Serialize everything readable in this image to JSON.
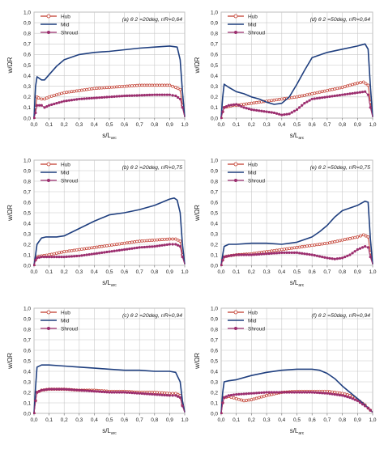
{
  "figure": {
    "background": "#ffffff"
  },
  "chart_data": [
    {
      "type": "line",
      "panel_label": "(a) θ 2 =20deg, r/R=0,64",
      "xlabel": "s/L_arc",
      "ylabel": "w/ΩR",
      "xlim": [
        0,
        1
      ],
      "ylim": [
        0,
        1
      ],
      "xticks": [
        "0,0",
        "0,1",
        "0,2",
        "0,3",
        "0,4",
        "0,5",
        "0,6",
        "0,7",
        "0,8",
        "0,9",
        "1,0"
      ],
      "yticks": [
        "0,0",
        "0,1",
        "0,2",
        "0,3",
        "0,4",
        "0,5",
        "0,6",
        "0,7",
        "0,8",
        "0,9",
        "1,0"
      ],
      "grid": true,
      "legend_position": "top-left",
      "series": [
        {
          "name": "Hub",
          "color": "#c0392b",
          "marker": "open-circle",
          "x": [
            0,
            0.01,
            0.02,
            0.03,
            0.05,
            0.07,
            0.1,
            0.15,
            0.2,
            0.3,
            0.4,
            0.5,
            0.6,
            0.7,
            0.8,
            0.9,
            0.94,
            0.97,
            0.985,
            1.0
          ],
          "y": [
            0.0,
            0.1,
            0.2,
            0.19,
            0.18,
            0.18,
            0.2,
            0.22,
            0.24,
            0.26,
            0.28,
            0.29,
            0.3,
            0.31,
            0.31,
            0.31,
            0.29,
            0.27,
            0.12,
            0.01
          ]
        },
        {
          "name": "Mid",
          "color": "#1f3f7f",
          "marker": "none",
          "x": [
            0,
            0.01,
            0.02,
            0.05,
            0.07,
            0.1,
            0.15,
            0.2,
            0.3,
            0.4,
            0.5,
            0.6,
            0.7,
            0.8,
            0.9,
            0.95,
            0.97,
            0.985,
            1.0
          ],
          "y": [
            0.0,
            0.3,
            0.39,
            0.36,
            0.36,
            0.41,
            0.49,
            0.55,
            0.6,
            0.62,
            0.63,
            0.645,
            0.66,
            0.67,
            0.68,
            0.67,
            0.55,
            0.25,
            0.01
          ]
        },
        {
          "name": "Shroud",
          "color": "#9b2d6e",
          "marker": "filled-circle",
          "x": [
            0,
            0.01,
            0.02,
            0.05,
            0.07,
            0.1,
            0.15,
            0.2,
            0.3,
            0.4,
            0.5,
            0.6,
            0.7,
            0.8,
            0.9,
            0.94,
            0.97,
            0.985,
            1.0
          ],
          "y": [
            0.0,
            0.05,
            0.12,
            0.12,
            0.1,
            0.12,
            0.14,
            0.16,
            0.18,
            0.19,
            0.2,
            0.21,
            0.215,
            0.22,
            0.22,
            0.21,
            0.18,
            0.1,
            0.01
          ]
        }
      ]
    },
    {
      "type": "line",
      "panel_label": "(d) θ 2 =50deg, r/R=0,64",
      "xlabel": "s/L_arc",
      "ylabel": "w/ΩR",
      "xlim": [
        0,
        1
      ],
      "ylim": [
        0,
        1
      ],
      "xticks": [
        "0,0",
        "0,1",
        "0,2",
        "0,3",
        "0,4",
        "0,5",
        "0,6",
        "0,7",
        "0,8",
        "0,9",
        "1,0"
      ],
      "yticks": [
        "0,0",
        "0,1",
        "0,2",
        "0,3",
        "0,4",
        "0,5",
        "0,6",
        "0,7",
        "0,8",
        "0,9",
        "1,0"
      ],
      "grid": true,
      "legend_position": "top-left",
      "series": [
        {
          "name": "Hub",
          "color": "#c0392b",
          "marker": "open-circle",
          "x": [
            0,
            0.01,
            0.02,
            0.05,
            0.08,
            0.1,
            0.15,
            0.2,
            0.3,
            0.4,
            0.5,
            0.6,
            0.7,
            0.8,
            0.9,
            0.94,
            0.97,
            0.985,
            1.0
          ],
          "y": [
            0.0,
            0.06,
            0.1,
            0.11,
            0.12,
            0.12,
            0.13,
            0.14,
            0.16,
            0.18,
            0.2,
            0.23,
            0.26,
            0.29,
            0.33,
            0.34,
            0.31,
            0.15,
            0.01
          ]
        },
        {
          "name": "Mid",
          "color": "#1f3f7f",
          "marker": "none",
          "x": [
            0,
            0.01,
            0.02,
            0.05,
            0.1,
            0.15,
            0.2,
            0.25,
            0.3,
            0.35,
            0.4,
            0.45,
            0.5,
            0.55,
            0.6,
            0.7,
            0.8,
            0.9,
            0.95,
            0.97,
            0.985,
            1.0
          ],
          "y": [
            0.0,
            0.2,
            0.32,
            0.29,
            0.25,
            0.23,
            0.2,
            0.18,
            0.15,
            0.13,
            0.14,
            0.2,
            0.32,
            0.45,
            0.57,
            0.62,
            0.65,
            0.68,
            0.7,
            0.65,
            0.3,
            0.01
          ]
        },
        {
          "name": "Shroud",
          "color": "#9b2d6e",
          "marker": "filled-circle",
          "x": [
            0,
            0.01,
            0.02,
            0.05,
            0.1,
            0.15,
            0.2,
            0.25,
            0.3,
            0.35,
            0.4,
            0.45,
            0.5,
            0.55,
            0.6,
            0.7,
            0.8,
            0.9,
            0.95,
            0.97,
            0.985,
            1.0
          ],
          "y": [
            0.0,
            0.06,
            0.1,
            0.12,
            0.13,
            0.1,
            0.08,
            0.07,
            0.06,
            0.05,
            0.03,
            0.04,
            0.08,
            0.14,
            0.18,
            0.2,
            0.22,
            0.24,
            0.25,
            0.22,
            0.1,
            0.01
          ]
        }
      ]
    },
    {
      "type": "line",
      "panel_label": "(b) θ 2 =20deg, r/R=0,75",
      "xlabel": "s/L_arc",
      "ylabel": "w/ΩR",
      "xlim": [
        0,
        1
      ],
      "ylim": [
        0,
        1
      ],
      "xticks": [
        "0,0",
        "0,1",
        "0,2",
        "0,3",
        "0,4",
        "0,5",
        "0,6",
        "0,7",
        "0,8",
        "0,9",
        "1,0"
      ],
      "yticks": [
        "0,0",
        "0,1",
        "0,2",
        "0,3",
        "0,4",
        "0,5",
        "0,6",
        "0,7",
        "0,8",
        "0,9",
        "1,0"
      ],
      "grid": true,
      "legend_position": "top-left",
      "series": [
        {
          "name": "Hub",
          "color": "#c0392b",
          "marker": "open-circle",
          "x": [
            0,
            0.01,
            0.02,
            0.05,
            0.1,
            0.2,
            0.3,
            0.4,
            0.5,
            0.6,
            0.7,
            0.8,
            0.9,
            0.94,
            0.97,
            0.985,
            1.0
          ],
          "y": [
            0.0,
            0.05,
            0.08,
            0.09,
            0.1,
            0.13,
            0.15,
            0.17,
            0.19,
            0.21,
            0.23,
            0.24,
            0.25,
            0.25,
            0.23,
            0.1,
            0.01
          ]
        },
        {
          "name": "Mid",
          "color": "#1f3f7f",
          "marker": "none",
          "x": [
            0,
            0.01,
            0.02,
            0.05,
            0.08,
            0.1,
            0.15,
            0.2,
            0.3,
            0.4,
            0.5,
            0.6,
            0.7,
            0.8,
            0.9,
            0.93,
            0.95,
            0.97,
            0.985,
            1.0
          ],
          "y": [
            0.0,
            0.1,
            0.2,
            0.26,
            0.27,
            0.27,
            0.27,
            0.28,
            0.35,
            0.42,
            0.48,
            0.5,
            0.53,
            0.57,
            0.63,
            0.64,
            0.62,
            0.5,
            0.2,
            0.01
          ]
        },
        {
          "name": "Shroud",
          "color": "#9b2d6e",
          "marker": "filled-circle",
          "x": [
            0,
            0.01,
            0.02,
            0.05,
            0.1,
            0.15,
            0.2,
            0.3,
            0.4,
            0.5,
            0.6,
            0.7,
            0.8,
            0.9,
            0.94,
            0.97,
            0.985,
            1.0
          ],
          "y": [
            0.0,
            0.05,
            0.07,
            0.08,
            0.08,
            0.08,
            0.08,
            0.09,
            0.11,
            0.13,
            0.15,
            0.17,
            0.18,
            0.2,
            0.2,
            0.18,
            0.08,
            0.01
          ]
        }
      ]
    },
    {
      "type": "line",
      "panel_label": "(e) θ 2 =50deg, r/R=0,75",
      "xlabel": "s/L_arc",
      "ylabel": "w/ΩR",
      "xlim": [
        0,
        1
      ],
      "ylim": [
        0,
        1
      ],
      "xticks": [
        "0,0",
        "0,1",
        "0,2",
        "0,3",
        "0,4",
        "0,5",
        "0,6",
        "0,7",
        "0,8",
        "0,9",
        "1,0"
      ],
      "yticks": [
        "0,0",
        "0,1",
        "0,2",
        "0,3",
        "0,4",
        "0,5",
        "0,6",
        "0,7",
        "0,8",
        "0,9",
        "1,0"
      ],
      "grid": true,
      "legend_position": "top-left",
      "series": [
        {
          "name": "Hub",
          "color": "#c0392b",
          "marker": "open-circle",
          "x": [
            0,
            0.01,
            0.02,
            0.05,
            0.1,
            0.2,
            0.3,
            0.4,
            0.5,
            0.6,
            0.7,
            0.8,
            0.9,
            0.94,
            0.97,
            0.985,
            1.0
          ],
          "y": [
            0.0,
            0.05,
            0.08,
            0.09,
            0.1,
            0.11,
            0.13,
            0.15,
            0.17,
            0.19,
            0.21,
            0.24,
            0.27,
            0.29,
            0.27,
            0.12,
            0.01
          ]
        },
        {
          "name": "Mid",
          "color": "#1f3f7f",
          "marker": "none",
          "x": [
            0,
            0.01,
            0.02,
            0.05,
            0.1,
            0.2,
            0.3,
            0.4,
            0.5,
            0.6,
            0.65,
            0.7,
            0.75,
            0.8,
            0.9,
            0.95,
            0.97,
            0.985,
            1.0
          ],
          "y": [
            0.0,
            0.1,
            0.18,
            0.2,
            0.2,
            0.21,
            0.21,
            0.2,
            0.22,
            0.27,
            0.32,
            0.38,
            0.46,
            0.52,
            0.57,
            0.61,
            0.6,
            0.25,
            0.01
          ]
        },
        {
          "name": "Shroud",
          "color": "#9b2d6e",
          "marker": "filled-circle",
          "x": [
            0,
            0.01,
            0.02,
            0.05,
            0.1,
            0.2,
            0.3,
            0.4,
            0.5,
            0.6,
            0.7,
            0.75,
            0.8,
            0.85,
            0.9,
            0.95,
            0.97,
            0.985,
            1.0
          ],
          "y": [
            0.0,
            0.05,
            0.08,
            0.09,
            0.1,
            0.1,
            0.11,
            0.12,
            0.12,
            0.1,
            0.07,
            0.06,
            0.07,
            0.1,
            0.15,
            0.18,
            0.17,
            0.08,
            0.01
          ]
        }
      ]
    },
    {
      "type": "line",
      "panel_label": "(c) θ 2 =20deg, r/R=0,94",
      "xlabel": "s/L_arc",
      "ylabel": "w/ΩR",
      "xlim": [
        0,
        1
      ],
      "ylim": [
        0,
        1
      ],
      "xticks": [
        "0,0",
        "0,1",
        "0,2",
        "0,3",
        "0,4",
        "0,5",
        "0,6",
        "0,7",
        "0,8",
        "0,9",
        "1,0"
      ],
      "yticks": [
        "0,0",
        "0,1",
        "0,2",
        "0,3",
        "0,4",
        "0,5",
        "0,6",
        "0,7",
        "0,8",
        "0,9",
        "1,0"
      ],
      "grid": true,
      "legend_position": "top-left",
      "series": [
        {
          "name": "Hub",
          "color": "#c0392b",
          "marker": "open-circle",
          "x": [
            0,
            0.01,
            0.02,
            0.05,
            0.1,
            0.2,
            0.3,
            0.4,
            0.5,
            0.6,
            0.7,
            0.8,
            0.9,
            0.94,
            0.97,
            0.985,
            1.0
          ],
          "y": [
            0.0,
            0.12,
            0.2,
            0.22,
            0.23,
            0.23,
            0.22,
            0.22,
            0.21,
            0.21,
            0.2,
            0.2,
            0.19,
            0.19,
            0.17,
            0.08,
            0.01
          ]
        },
        {
          "name": "Mid",
          "color": "#1f3f7f",
          "marker": "none",
          "x": [
            0,
            0.01,
            0.02,
            0.05,
            0.1,
            0.2,
            0.3,
            0.4,
            0.5,
            0.6,
            0.7,
            0.8,
            0.9,
            0.94,
            0.97,
            0.985,
            1.0
          ],
          "y": [
            0.0,
            0.25,
            0.44,
            0.46,
            0.46,
            0.45,
            0.44,
            0.43,
            0.42,
            0.41,
            0.41,
            0.4,
            0.4,
            0.39,
            0.3,
            0.12,
            0.01
          ]
        },
        {
          "name": "Shroud",
          "color": "#9b2d6e",
          "marker": "filled-circle",
          "x": [
            0,
            0.01,
            0.02,
            0.05,
            0.1,
            0.2,
            0.3,
            0.4,
            0.5,
            0.6,
            0.7,
            0.8,
            0.9,
            0.94,
            0.97,
            0.985,
            1.0
          ],
          "y": [
            0.0,
            0.12,
            0.2,
            0.22,
            0.23,
            0.23,
            0.22,
            0.21,
            0.2,
            0.2,
            0.19,
            0.18,
            0.17,
            0.17,
            0.15,
            0.07,
            0.01
          ]
        }
      ]
    },
    {
      "type": "line",
      "panel_label": "(f) θ 2 =50deg, r/R=0,94",
      "xlabel": "s/L_arc",
      "ylabel": "w/ΩR",
      "xlim": [
        0,
        1
      ],
      "ylim": [
        0,
        1
      ],
      "xticks": [
        "0,0",
        "0,1",
        "0,2",
        "0,3",
        "0,4",
        "0,5",
        "0,6",
        "0,7",
        "0,8",
        "0,9",
        "1,0"
      ],
      "yticks": [
        "0,0",
        "0,1",
        "0,2",
        "0,3",
        "0,4",
        "0,5",
        "0,6",
        "0,7",
        "0,8",
        "0,9",
        "1,0"
      ],
      "grid": true,
      "legend_position": "top-left",
      "series": [
        {
          "name": "Hub",
          "color": "#c0392b",
          "marker": "open-circle",
          "x": [
            0,
            0.01,
            0.02,
            0.05,
            0.1,
            0.15,
            0.2,
            0.3,
            0.4,
            0.5,
            0.6,
            0.7,
            0.8,
            0.85,
            0.9,
            0.95,
            0.97,
            0.985,
            1.0
          ],
          "y": [
            0.0,
            0.1,
            0.15,
            0.16,
            0.14,
            0.12,
            0.13,
            0.17,
            0.2,
            0.21,
            0.21,
            0.21,
            0.19,
            0.17,
            0.13,
            0.08,
            0.05,
            0.03,
            0.01
          ]
        },
        {
          "name": "Mid",
          "color": "#1f3f7f",
          "marker": "none",
          "x": [
            0,
            0.01,
            0.02,
            0.05,
            0.1,
            0.2,
            0.3,
            0.4,
            0.5,
            0.6,
            0.65,
            0.7,
            0.75,
            0.8,
            0.85,
            0.9,
            0.95,
            0.985,
            1.0
          ],
          "y": [
            0.0,
            0.2,
            0.3,
            0.31,
            0.32,
            0.36,
            0.39,
            0.41,
            0.42,
            0.42,
            0.41,
            0.38,
            0.33,
            0.26,
            0.2,
            0.14,
            0.08,
            0.03,
            0.01
          ]
        },
        {
          "name": "Shroud",
          "color": "#9b2d6e",
          "marker": "filled-circle",
          "x": [
            0,
            0.01,
            0.02,
            0.05,
            0.1,
            0.2,
            0.3,
            0.4,
            0.5,
            0.6,
            0.7,
            0.8,
            0.85,
            0.9,
            0.95,
            0.97,
            0.985,
            1.0
          ],
          "y": [
            0.0,
            0.1,
            0.15,
            0.17,
            0.18,
            0.19,
            0.2,
            0.2,
            0.2,
            0.2,
            0.19,
            0.17,
            0.15,
            0.12,
            0.07,
            0.05,
            0.03,
            0.01
          ]
        }
      ]
    }
  ]
}
